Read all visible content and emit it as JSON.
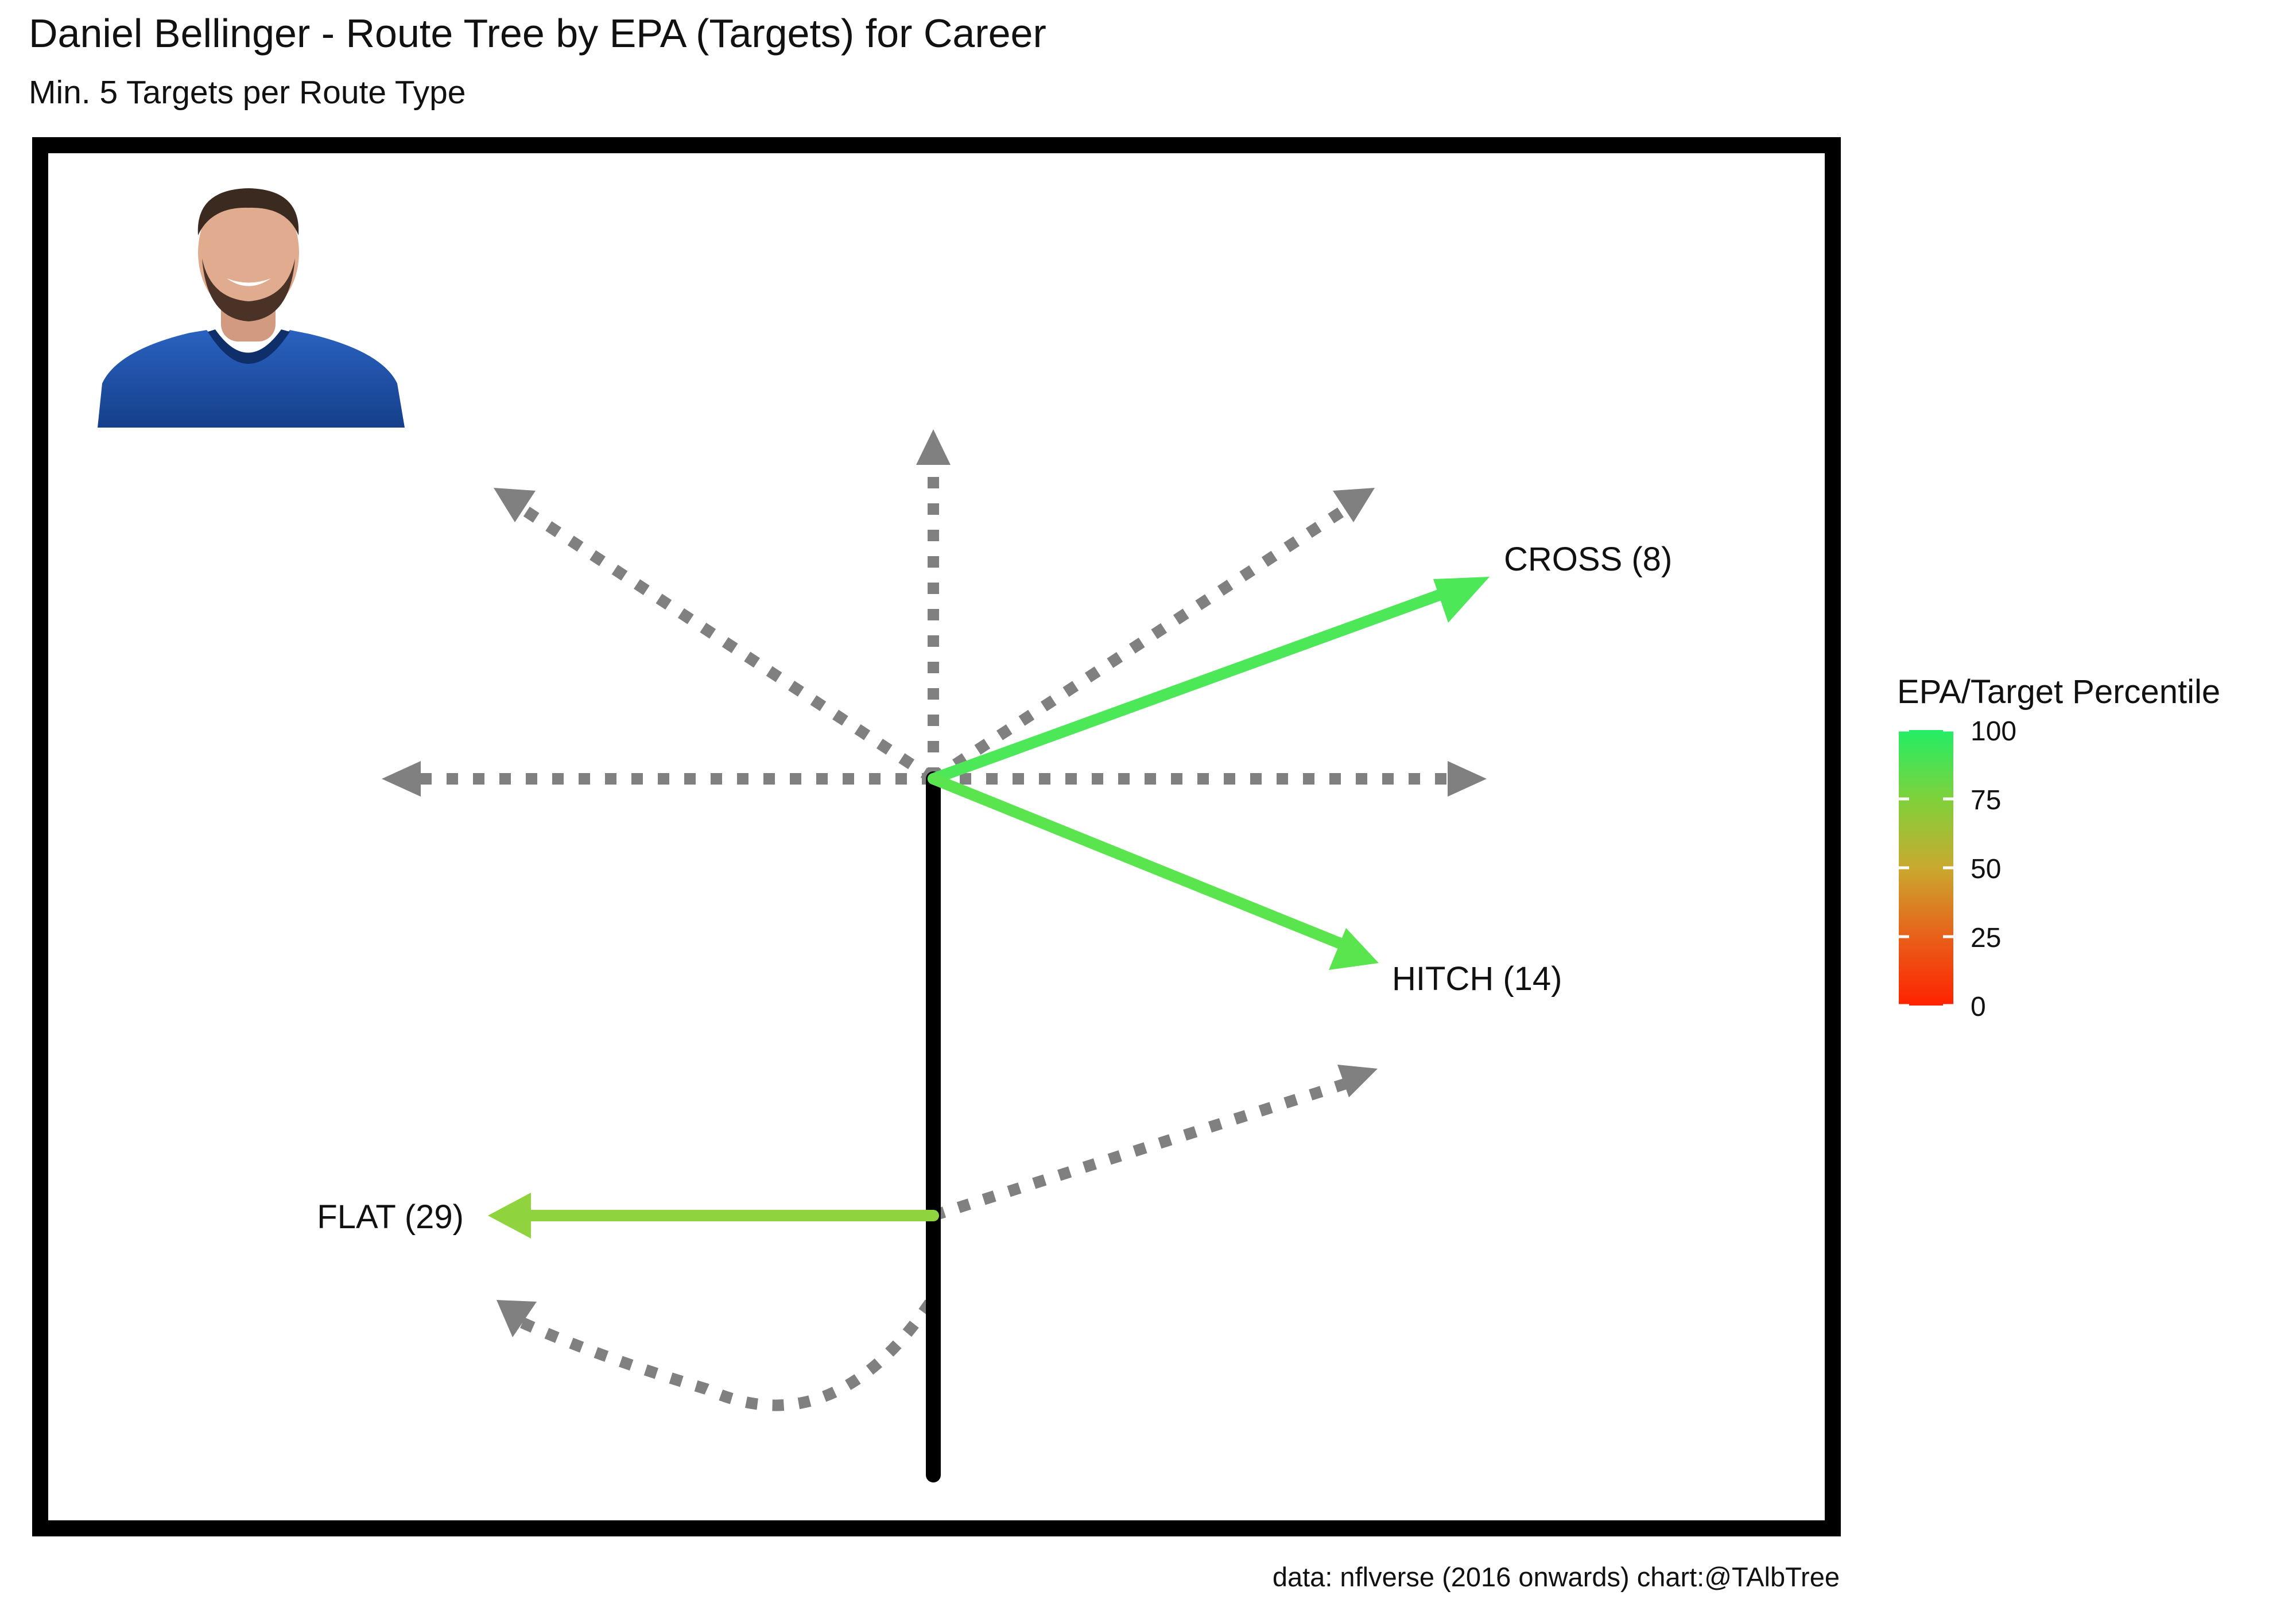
{
  "header": {
    "title": "Daniel Bellinger - Route Tree by EPA (Targets) for Career",
    "subtitle": "Min. 5 Targets per Route Type"
  },
  "footer": {
    "caption": "data: nflverse (2016 onwards)  chart:@TAlbTree"
  },
  "photo": {
    "subject": "player-headshot",
    "jersey_color": "#1a4fa0"
  },
  "chart_data": {
    "type": "route-tree",
    "legend": {
      "title": "EPA/Target Percentile",
      "ticks": [
        0,
        25,
        50,
        75,
        100
      ],
      "placement": "right",
      "gradient": [
        "#ff2200",
        "#e8601a",
        "#c9a92e",
        "#7fd13b",
        "#22ee66"
      ]
    },
    "colors": {
      "inactive": "#808080",
      "stem": "#000000",
      "frame": "#000000"
    },
    "routes": [
      {
        "name": "CROSS",
        "label": "CROSS (8)",
        "targets": 8,
        "percentile": 97,
        "color": "#4ce858",
        "active": true
      },
      {
        "name": "HITCH",
        "label": "HITCH (14)",
        "targets": 14,
        "percentile": 92,
        "color": "#5ae54e",
        "active": true
      },
      {
        "name": "FLAT",
        "label": "FLAT (29)",
        "targets": 29,
        "percentile": 80,
        "color": "#8fd43f",
        "active": true
      },
      {
        "name": "GO",
        "label": "",
        "active": false
      },
      {
        "name": "POST",
        "label": "",
        "active": false
      },
      {
        "name": "CORNER",
        "label": "",
        "active": false
      },
      {
        "name": "OUT",
        "label": "",
        "active": false
      },
      {
        "name": "IN",
        "label": "",
        "active": false
      },
      {
        "name": "SLANT",
        "label": "",
        "active": false
      },
      {
        "name": "WHEEL",
        "label": "",
        "active": false
      }
    ]
  }
}
